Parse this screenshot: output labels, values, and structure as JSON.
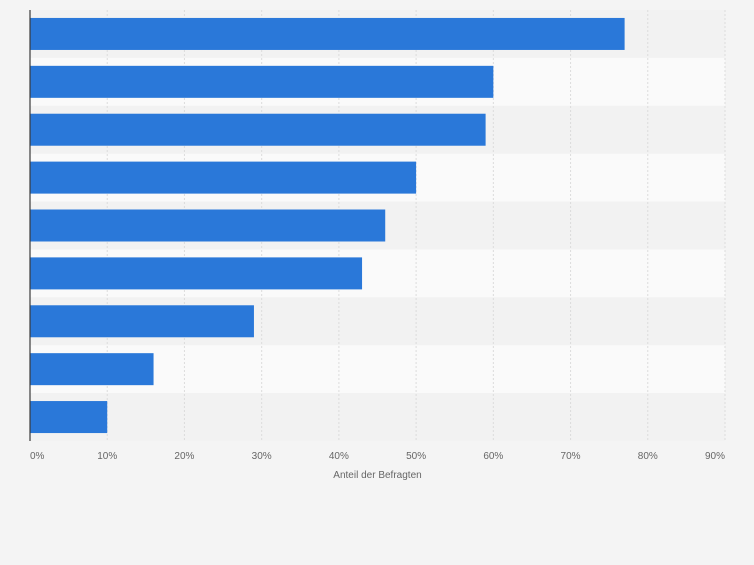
{
  "chart_data": {
    "type": "bar",
    "orientation": "horizontal",
    "categories": [
      "",
      "",
      "",
      "",
      "",
      "",
      "",
      "",
      ""
    ],
    "values": [
      77,
      60,
      59,
      50,
      46,
      43,
      29,
      16,
      10
    ],
    "xlabel": "Anteil der Befragten",
    "xlim": [
      0,
      90
    ],
    "x_ticks": [
      "0%",
      "10%",
      "20%",
      "30%",
      "40%",
      "50%",
      "60%",
      "70%",
      "80%",
      "90%"
    ],
    "grid": true,
    "colors": {
      "bar": "#2a78d9",
      "band_light": "#fafafa",
      "band_dark": "#f2f2f2",
      "background": "#f4f4f4",
      "grid": "#dcdcdc",
      "axis": "#3a3a3a",
      "text": "#666666"
    }
  }
}
